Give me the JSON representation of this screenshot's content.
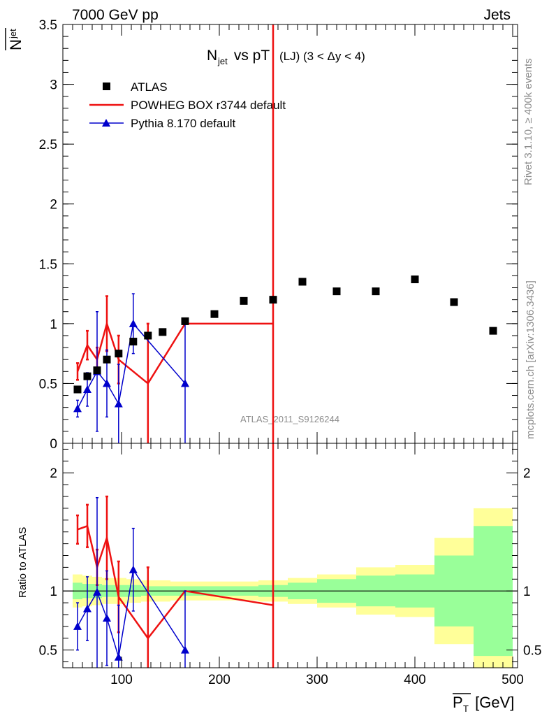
{
  "header": {
    "left": "7000 GeV pp",
    "right": "Jets"
  },
  "side": {
    "rivet": "Rivet 3.1.10, ≥ 400k events",
    "mcplots": "mcplots.cern.ch [arXiv:1306.3436]"
  },
  "watermark": "ATLAS_2011_S9126244",
  "colors": {
    "atlas": "#000000",
    "powheg": "#ee1111",
    "pythia": "#0000cc",
    "band_inner": "#99ff99",
    "band_outer": "#ffff99"
  },
  "chart_data": [
    {
      "type": "scatter",
      "title_main": "N",
      "title_sub": "jet",
      "title_rest": " vs pT",
      "title_paren": "(LJ) (3 < Δy < 4)",
      "ylabel_main": "N",
      "ylabel_sub": "jet",
      "ylim": [
        0,
        3.5
      ],
      "yticks": [
        0,
        0.5,
        1,
        1.5,
        2,
        2.5,
        3,
        3.5
      ],
      "ytick_labels": [
        "0",
        "0.5",
        "1",
        "1.5",
        "2",
        "2.5",
        "3",
        "3.5"
      ],
      "xlim": [
        40,
        505
      ],
      "legend": [
        "ATLAS",
        "POWHEG BOX r3744 default",
        "Pythia 8.170 default"
      ],
      "series": [
        {
          "name": "ATLAS",
          "x": [
            55,
            65,
            75,
            85,
            97,
            112,
            127,
            142,
            165,
            195,
            225,
            255,
            285,
            320,
            360,
            400,
            440,
            480
          ],
          "values": [
            0.45,
            0.56,
            0.61,
            0.7,
            0.75,
            0.85,
            0.9,
            0.93,
            1.02,
            1.08,
            1.19,
            1.2,
            1.35,
            1.27,
            1.27,
            1.37,
            1.18,
            0.94
          ]
        },
        {
          "name": "POWHEG BOX r3744 default",
          "x": [
            55,
            65,
            75,
            85,
            97,
            127,
            165,
            255
          ],
          "values": [
            0.6,
            0.82,
            0.7,
            1.0,
            0.7,
            0.5,
            1.0,
            1.0
          ],
          "err": [
            0.07,
            0.12,
            0.1,
            0.23,
            0.2,
            0.5,
            0.0,
            5.0
          ]
        },
        {
          "name": "Pythia 8.170 default",
          "x": [
            55,
            65,
            75,
            85,
            97,
            112,
            165
          ],
          "values": [
            0.29,
            0.45,
            0.6,
            0.5,
            0.33,
            1.0,
            0.5
          ],
          "err": [
            0.07,
            0.14,
            0.5,
            0.28,
            0.33,
            0.25,
            0.5
          ]
        }
      ]
    },
    {
      "type": "line",
      "ylabel": "Ratio to ATLAS",
      "ylim": [
        0.35,
        2.25
      ],
      "yticks": [
        0.5,
        1,
        2
      ],
      "ytick_labels": [
        "0.5",
        "1",
        "2"
      ],
      "xlim": [
        40,
        505
      ],
      "xticks": [
        100,
        200,
        300,
        400,
        500
      ],
      "xtick_labels": [
        "100",
        "200",
        "300",
        "400",
        "500"
      ],
      "xlabel_main": "P",
      "xlabel_sub": "T",
      "xlabel_unit": " [GeV]",
      "bands": {
        "edges": [
          50,
          60,
          70,
          80,
          90,
          105,
          120,
          135,
          150,
          180,
          210,
          240,
          270,
          300,
          340,
          380,
          420,
          460,
          500
        ],
        "outer_lo": [
          0.86,
          0.87,
          0.88,
          0.89,
          0.89,
          0.9,
          0.91,
          0.91,
          0.92,
          0.92,
          0.92,
          0.91,
          0.89,
          0.86,
          0.8,
          0.78,
          0.55,
          0.3
        ],
        "outer_hi": [
          1.14,
          1.13,
          1.12,
          1.11,
          1.11,
          1.1,
          1.09,
          1.09,
          1.08,
          1.08,
          1.08,
          1.09,
          1.11,
          1.14,
          1.2,
          1.22,
          1.45,
          1.7
        ],
        "inner_lo": [
          0.93,
          0.94,
          0.94,
          0.95,
          0.95,
          0.95,
          0.96,
          0.96,
          0.96,
          0.96,
          0.96,
          0.95,
          0.93,
          0.9,
          0.87,
          0.86,
          0.7,
          0.45
        ],
        "inner_hi": [
          1.07,
          1.06,
          1.06,
          1.05,
          1.05,
          1.05,
          1.04,
          1.04,
          1.04,
          1.04,
          1.04,
          1.05,
          1.07,
          1.1,
          1.13,
          1.14,
          1.3,
          1.55
        ]
      },
      "series": [
        {
          "name": "POWHEG BOX r3744 default",
          "x": [
            55,
            65,
            75,
            85,
            97,
            127,
            165,
            255
          ],
          "values": [
            1.52,
            1.55,
            1.2,
            1.45,
            0.95,
            0.6,
            1.0,
            0.88
          ],
          "err": [
            0.12,
            0.18,
            0.15,
            0.35,
            0.3,
            0.6,
            0.0,
            5.0
          ]
        },
        {
          "name": "Pythia 8.170 default",
          "x": [
            55,
            65,
            75,
            85,
            97,
            112,
            165
          ],
          "values": [
            0.7,
            0.85,
            0.99,
            0.77,
            0.44,
            1.18,
            0.5
          ],
          "err": [
            0.2,
            0.27,
            0.8,
            0.4,
            0.44,
            0.35,
            0.5
          ]
        }
      ]
    }
  ]
}
